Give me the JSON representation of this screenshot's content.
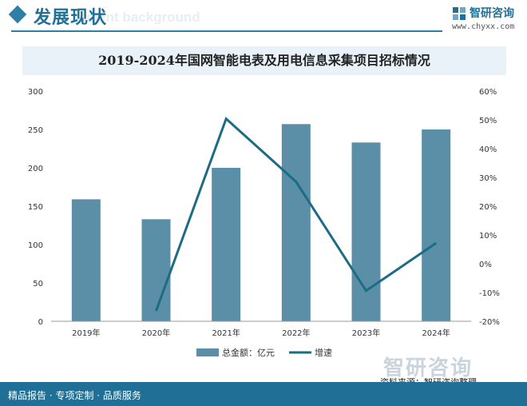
{
  "header": {
    "section_title": "发展现状",
    "background_text": "ment background",
    "brand_name": "智研咨询",
    "brand_url": "www.chyxx.com",
    "logo_icon": "chyxx-logo-icon"
  },
  "chart_data": {
    "type": "bar",
    "title": "2019-2024年国网智能电表及用电信息采集项目招标情况",
    "categories": [
      "2019年",
      "2020年",
      "2021年",
      "2022年",
      "2023年",
      "2024年"
    ],
    "series": [
      {
        "name": "总金额：亿元",
        "type": "bar",
        "axis": "left",
        "color": "#5b8fa8",
        "values": [
          159,
          133,
          200,
          257,
          233,
          250
        ]
      },
      {
        "name": "增速",
        "type": "line",
        "axis": "right",
        "color": "#1c6c86",
        "values": [
          null,
          -16.4,
          50.4,
          28.5,
          -9.4,
          7.2
        ]
      }
    ],
    "y_left": {
      "min": 0,
      "max": 300,
      "ticks": [
        "0",
        "50",
        "100",
        "150",
        "200",
        "250",
        "300"
      ]
    },
    "y_right": {
      "min": -20,
      "max": 60,
      "ticks": [
        "-20%",
        "-10%",
        "0%",
        "10%",
        "20%",
        "30%",
        "40%",
        "50%",
        "60%"
      ]
    },
    "grid": false,
    "legend": "bottom"
  },
  "watermark": {
    "brand": "智研咨询"
  },
  "footer": {
    "left_text": "精品报告 · 专项定制 · 品质服务",
    "source": "资料来源：智研咨询整理"
  }
}
